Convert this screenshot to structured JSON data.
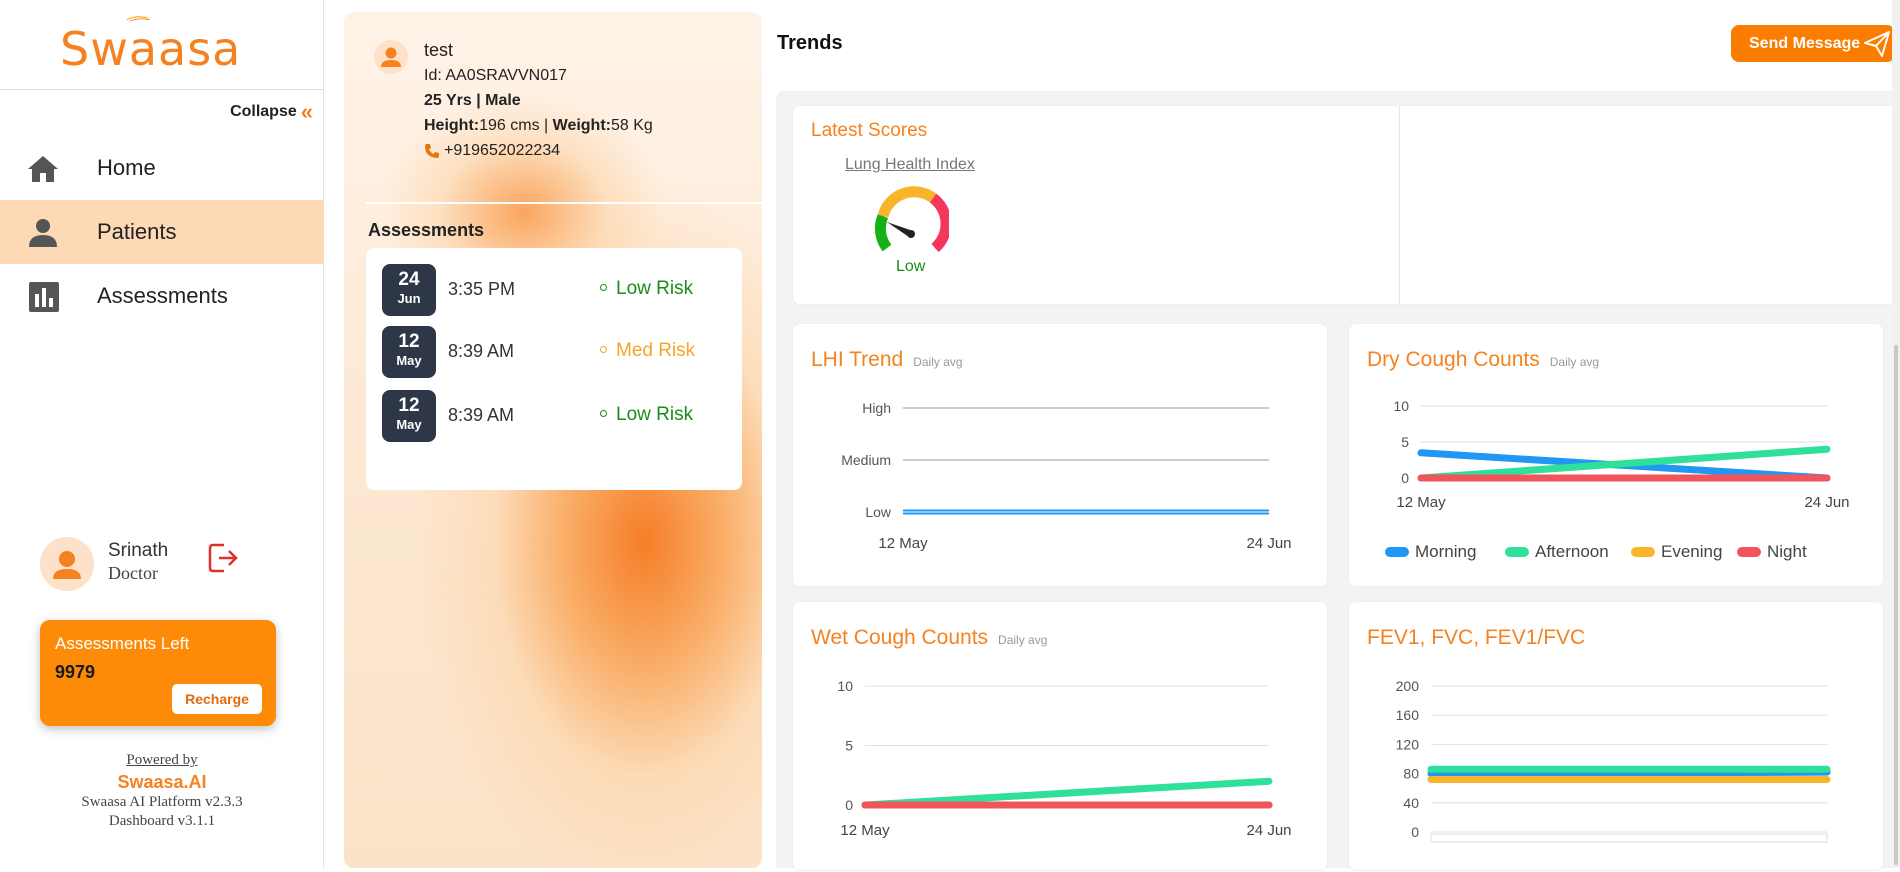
{
  "sidebar": {
    "logo": "Swaasa",
    "collapse_label": "Collapse",
    "nav": [
      {
        "label": "Home",
        "icon": "home-icon"
      },
      {
        "label": "Patients",
        "icon": "person-icon"
      },
      {
        "label": "Assessments",
        "icon": "bar-chart-icon"
      }
    ],
    "user": {
      "name": "Srinath",
      "role": "Doctor"
    },
    "assessments_card": {
      "title": "Assessments Left",
      "count": "9979",
      "button": "Recharge"
    },
    "footer": {
      "powered_by": "Powered by",
      "brand": "Swaasa.AI",
      "platform": "Swaasa AI Platform v2.3.3",
      "dashboard": "Dashboard v3.1.1"
    }
  },
  "patient": {
    "name": "test",
    "id": "Id: AA0SRAVVN017",
    "age_gender": "25 Yrs | Male",
    "height_label": "Height:",
    "height_value": "196 cms",
    "sep": " | ",
    "weight_label": "Weight:",
    "weight_value": "58 Kg",
    "phone": "+919652022234",
    "assessments_title": "Assessments",
    "assessments": [
      {
        "day": "24",
        "month": "Jun",
        "time": "3:35 PM",
        "risk": "Low Risk",
        "color": "#1a8c1a"
      },
      {
        "day": "12",
        "month": "May",
        "time": "8:39 AM",
        "risk": "Med Risk",
        "color": "#f5a623"
      },
      {
        "day": "12",
        "month": "May",
        "time": "8:39 AM",
        "risk": "Low Risk",
        "color": "#1a8c1a"
      }
    ]
  },
  "trends": {
    "title": "Trends",
    "send_message": "Send Message",
    "latest_scores": {
      "title": "Latest Scores",
      "link": "Lung Health Index",
      "gauge_label": "Low"
    },
    "daily_avg": "Daily avg"
  },
  "colors": {
    "accent": "#f58220",
    "morning": "#2196f3",
    "afternoon": "#2ee09a",
    "evening": "#f9b529",
    "night": "#f2545b"
  },
  "chart_data": [
    {
      "type": "line",
      "title": "LHI Trend",
      "subtitle": "Daily avg",
      "x": [
        "12 May",
        "24 Jun"
      ],
      "y_categories": [
        "Low",
        "Medium",
        "High"
      ],
      "series": [
        {
          "values": [
            "Low",
            "Low"
          ]
        }
      ]
    },
    {
      "type": "line",
      "title": "Dry Cough Counts",
      "subtitle": "Daily avg",
      "x": [
        "12 May",
        "24 Jun"
      ],
      "ylim": [
        0,
        10
      ],
      "yticks": [
        0,
        5,
        10
      ],
      "series": [
        {
          "name": "Morning",
          "values": [
            3.5,
            0
          ]
        },
        {
          "name": "Afternoon",
          "values": [
            0,
            4
          ]
        },
        {
          "name": "Evening",
          "values": [
            0,
            0
          ]
        },
        {
          "name": "Night",
          "values": [
            0,
            0
          ]
        }
      ],
      "legend": "bottom"
    },
    {
      "type": "line",
      "title": "Wet Cough Counts",
      "subtitle": "Daily avg",
      "x": [
        "12 May",
        "24 Jun"
      ],
      "ylim": [
        0,
        10
      ],
      "yticks": [
        0,
        5,
        10
      ],
      "series": [
        {
          "name": "Morning",
          "values": [
            0,
            0
          ]
        },
        {
          "name": "Afternoon",
          "values": [
            0,
            2
          ]
        },
        {
          "name": "Evening",
          "values": [
            0,
            0
          ]
        },
        {
          "name": "Night",
          "values": [
            0,
            0
          ]
        }
      ]
    },
    {
      "type": "line",
      "title": "FEV1, FVC, FEV1/FVC",
      "ylim": [
        0,
        200
      ],
      "yticks": [
        0,
        40,
        80,
        120,
        160,
        200
      ],
      "series": [
        {
          "values": [
            80,
            82
          ]
        },
        {
          "values": [
            86,
            86
          ]
        },
        {
          "values": [
            72,
            72
          ]
        }
      ]
    }
  ]
}
